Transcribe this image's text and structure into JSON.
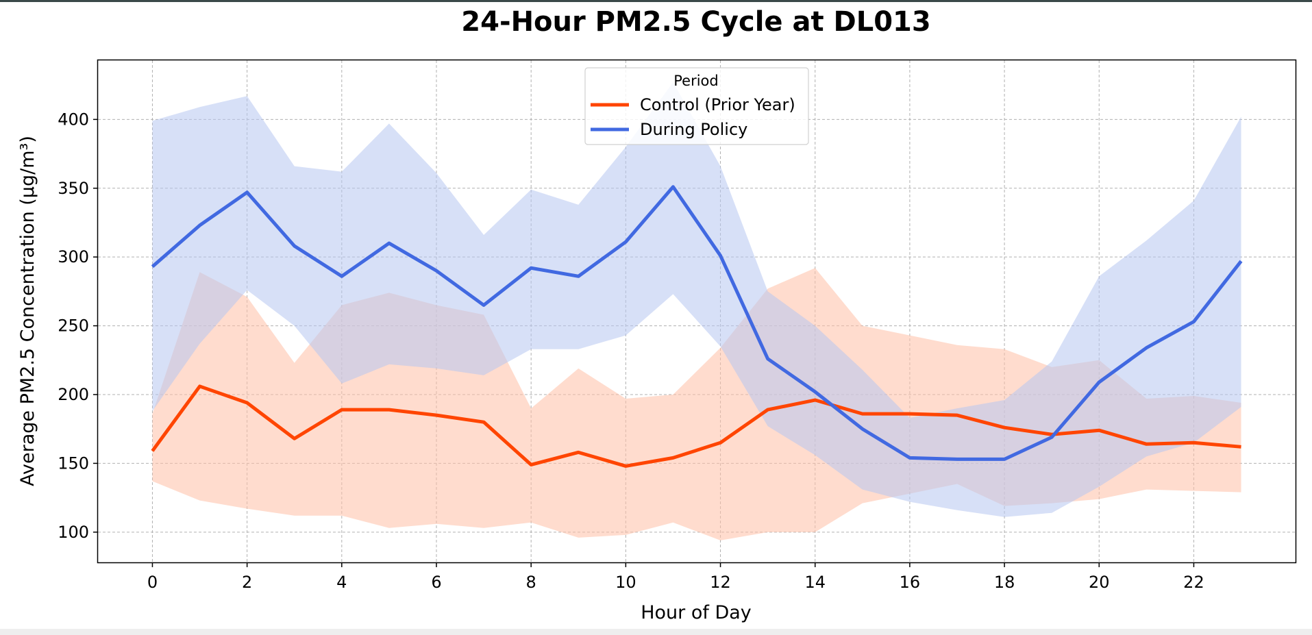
{
  "chart_data": {
    "type": "line",
    "title": "24-Hour PM2.5 Cycle at DL013",
    "xlabel": "Hour of Day",
    "ylabel": "Average PM2.5 Concentration (µg/m³)",
    "xlim": [
      -1.15,
      24.15
    ],
    "ylim": [
      78,
      443
    ],
    "xticks": [
      0,
      2,
      4,
      6,
      8,
      10,
      12,
      14,
      16,
      18,
      20,
      22
    ],
    "yticks": [
      100,
      150,
      200,
      250,
      300,
      350,
      400
    ],
    "grid": true,
    "legend": {
      "title": "Period",
      "placement": "upper center"
    },
    "x": [
      0,
      1,
      2,
      3,
      4,
      5,
      6,
      7,
      8,
      9,
      10,
      11,
      12,
      13,
      14,
      15,
      16,
      17,
      18,
      19,
      20,
      21,
      22,
      23
    ],
    "series": [
      {
        "name": "Control (Prior Year)",
        "color": "#ff4500",
        "band_color": "#ffbfa6",
        "values": [
          159,
          206,
          194,
          168,
          189,
          189,
          185,
          180,
          149,
          158,
          148,
          154,
          165,
          189,
          196,
          186,
          186,
          185,
          176,
          171,
          174,
          164,
          165,
          162
        ],
        "lower": [
          137,
          123,
          117,
          112,
          112,
          103,
          106,
          103,
          107,
          96,
          98,
          107,
          94,
          100,
          100,
          121,
          128,
          135,
          119,
          121,
          124,
          131,
          130,
          129
        ],
        "upper": [
          186,
          289,
          271,
          223,
          265,
          274,
          265,
          258,
          190,
          219,
          197,
          200,
          234,
          277,
          292,
          250,
          243,
          236,
          233,
          220,
          225,
          197,
          199,
          194
        ]
      },
      {
        "name": "During Policy",
        "color": "#4169e1",
        "band_color": "#b6c6f1",
        "values": [
          293,
          323,
          347,
          308,
          286,
          310,
          290,
          265,
          292,
          286,
          311,
          351,
          301,
          226,
          202,
          175,
          154,
          153,
          153,
          169,
          209,
          234,
          253,
          297
        ],
        "lower": [
          188,
          237,
          276,
          250,
          208,
          222,
          219,
          214,
          233,
          233,
          243,
          273,
          235,
          177,
          156,
          131,
          122,
          116,
          111,
          114,
          133,
          155,
          165,
          191
        ],
        "upper": [
          399,
          409,
          417,
          366,
          362,
          397,
          361,
          316,
          349,
          338,
          380,
          427,
          366,
          275,
          250,
          218,
          183,
          190,
          196,
          224,
          286,
          312,
          341,
          402
        ]
      }
    ]
  }
}
